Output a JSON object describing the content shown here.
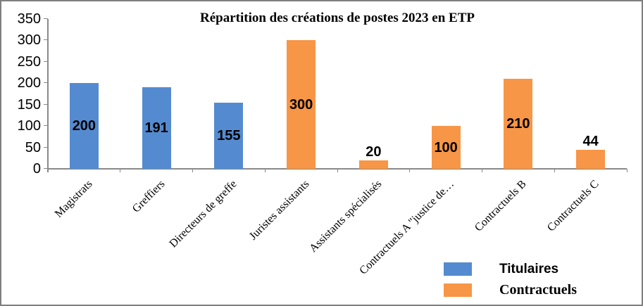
{
  "chart_data": {
    "type": "bar",
    "title": "Répartition des créations de postes 2023 en ETP",
    "categories": [
      "Magistrats",
      "Greffiers",
      "Directeurs de greffe",
      "Juristes assistants",
      "Assistants spécialisés",
      "Contractuels A \"justice de…",
      "Contractuels B",
      "Contractuels C"
    ],
    "points": [
      {
        "category": "Magistrats",
        "value": 200,
        "series": "Titulaires",
        "label": "200",
        "label_placement": "inside-center"
      },
      {
        "category": "Greffiers",
        "value": 191,
        "series": "Titulaires",
        "label": "191",
        "label_placement": "inside-center"
      },
      {
        "category": "Directeurs de greffe",
        "value": 155,
        "series": "Titulaires",
        "label": "155",
        "label_placement": "inside-center"
      },
      {
        "category": "Juristes assistants",
        "value": 300,
        "series": "Contractuels",
        "label": "300",
        "label_placement": "inside-center"
      },
      {
        "category": "Assistants spécialisés",
        "value": 20,
        "series": "Contractuels",
        "label": "20",
        "label_placement": "outside-top"
      },
      {
        "category": "Contractuels A \"justice de…",
        "value": 100,
        "series": "Contractuels",
        "label": "100",
        "label_placement": "inside-center"
      },
      {
        "category": "Contractuels B",
        "value": 210,
        "series": "Contractuels",
        "label": "210",
        "label_placement": "inside-center"
      },
      {
        "category": "Contractuels C",
        "value": 44,
        "series": "Contractuels",
        "label": "44",
        "label_placement": "outside-top"
      }
    ],
    "series": [
      {
        "name": "Titulaires",
        "color": "#548BD0",
        "values": [
          200,
          191,
          155,
          null,
          null,
          null,
          null,
          null
        ]
      },
      {
        "name": "Contractuels",
        "color": "#F79646",
        "values": [
          null,
          null,
          null,
          300,
          20,
          100,
          210,
          44
        ]
      }
    ],
    "ylim": [
      0,
      350
    ],
    "yticks": [
      0,
      50,
      100,
      150,
      200,
      250,
      300,
      350
    ],
    "grid": false,
    "legend_position": "bottom-right",
    "legend": [
      {
        "label": "Titulaires",
        "color": "#548BD0"
      },
      {
        "label": "Contractuels",
        "color": "#F79646"
      }
    ],
    "colors": {
      "axis": "#898989",
      "frame_border": "#7f7f7f",
      "background": "#ffffff",
      "text": "#000000"
    }
  }
}
